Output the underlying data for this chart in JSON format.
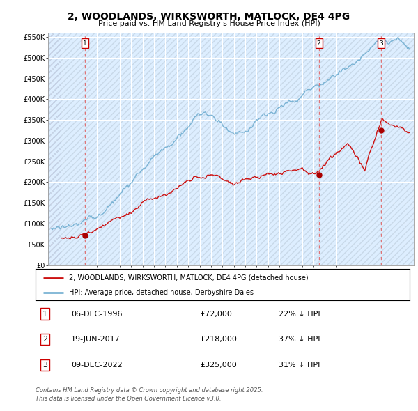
{
  "title": "2, WOODLANDS, WIRKSWORTH, MATLOCK, DE4 4PG",
  "subtitle": "Price paid vs. HM Land Registry's House Price Index (HPI)",
  "hpi_color": "#7ab3d4",
  "property_color": "#cc1111",
  "transaction_line_color": "#e06060",
  "marker_color": "#aa0000",
  "background_color": "#ffffff",
  "plot_bg_color": "#ddeeff",
  "grid_color": "#ffffff",
  "ylim": [
    0,
    560000
  ],
  "yticks": [
    0,
    50000,
    100000,
    150000,
    200000,
    250000,
    300000,
    350000,
    400000,
    450000,
    500000,
    550000
  ],
  "ytick_labels": [
    "£0",
    "£50K",
    "£100K",
    "£150K",
    "£200K",
    "£250K",
    "£300K",
    "£350K",
    "£400K",
    "£450K",
    "£500K",
    "£550K"
  ],
  "xlim_start": 1993.7,
  "xlim_end": 2025.8,
  "transactions": [
    {
      "date": 1996.92,
      "price": 72000,
      "label": "1",
      "date_str": "06-DEC-1996",
      "price_str": "£72,000",
      "pct_str": "22% ↓ HPI"
    },
    {
      "date": 2017.46,
      "price": 218000,
      "label": "2",
      "date_str": "19-JUN-2017",
      "price_str": "£218,000",
      "pct_str": "37% ↓ HPI"
    },
    {
      "date": 2022.92,
      "price": 325000,
      "label": "3",
      "date_str": "09-DEC-2022",
      "price_str": "£325,000",
      "pct_str": "31% ↓ HPI"
    }
  ],
  "legend_property": "2, WOODLANDS, WIRKSWORTH, MATLOCK, DE4 4PG (detached house)",
  "legend_hpi": "HPI: Average price, detached house, Derbyshire Dales",
  "footer": "Contains HM Land Registry data © Crown copyright and database right 2025.\nThis data is licensed under the Open Government Licence v3.0.",
  "table_rows": [
    [
      "1",
      "06-DEC-1996",
      "£72,000",
      "22% ↓ HPI"
    ],
    [
      "2",
      "19-JUN-2017",
      "£218,000",
      "37% ↓ HPI"
    ],
    [
      "3",
      "09-DEC-2022",
      "£325,000",
      "31% ↓ HPI"
    ]
  ]
}
